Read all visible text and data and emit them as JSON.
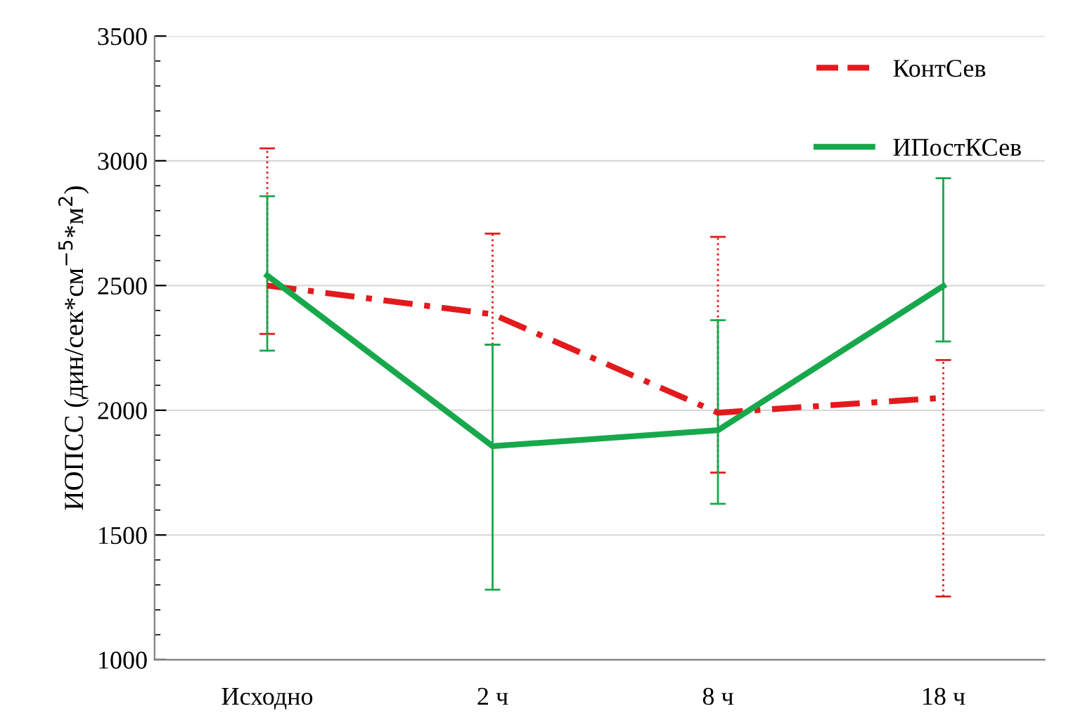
{
  "chart_data": {
    "type": "line",
    "ylabel": "ИОПСС (дин/сек*см$^{−5}$*м$^{2}$)",
    "categories": [
      "Исходно",
      "2 ч",
      "8 ч",
      "18 ч"
    ],
    "series": [
      {
        "name": "КонтСев",
        "color": "#e31a1c",
        "line_style": "dashed",
        "values": [
          2500,
          2385,
          1990,
          2050
        ],
        "errors": [
          [
            2306,
            3050
          ],
          [
            2263,
            2708
          ],
          [
            1750,
            2695
          ],
          [
            1253,
            2201
          ]
        ]
      },
      {
        "name": "ИПостКСев",
        "color": "#17a84b",
        "line_style": "solid",
        "values": [
          2540,
          1856,
          1920,
          2498
        ],
        "errors": [
          [
            2239,
            2858
          ],
          [
            1281,
            2263
          ],
          [
            1625,
            2361
          ],
          [
            2276,
            2930
          ]
        ]
      }
    ],
    "ylim": [
      1000,
      3500
    ],
    "yticks": [
      1000,
      1500,
      2000,
      2500,
      3000,
      3500
    ],
    "grid": "y",
    "legend": "top right",
    "marker": "none"
  }
}
